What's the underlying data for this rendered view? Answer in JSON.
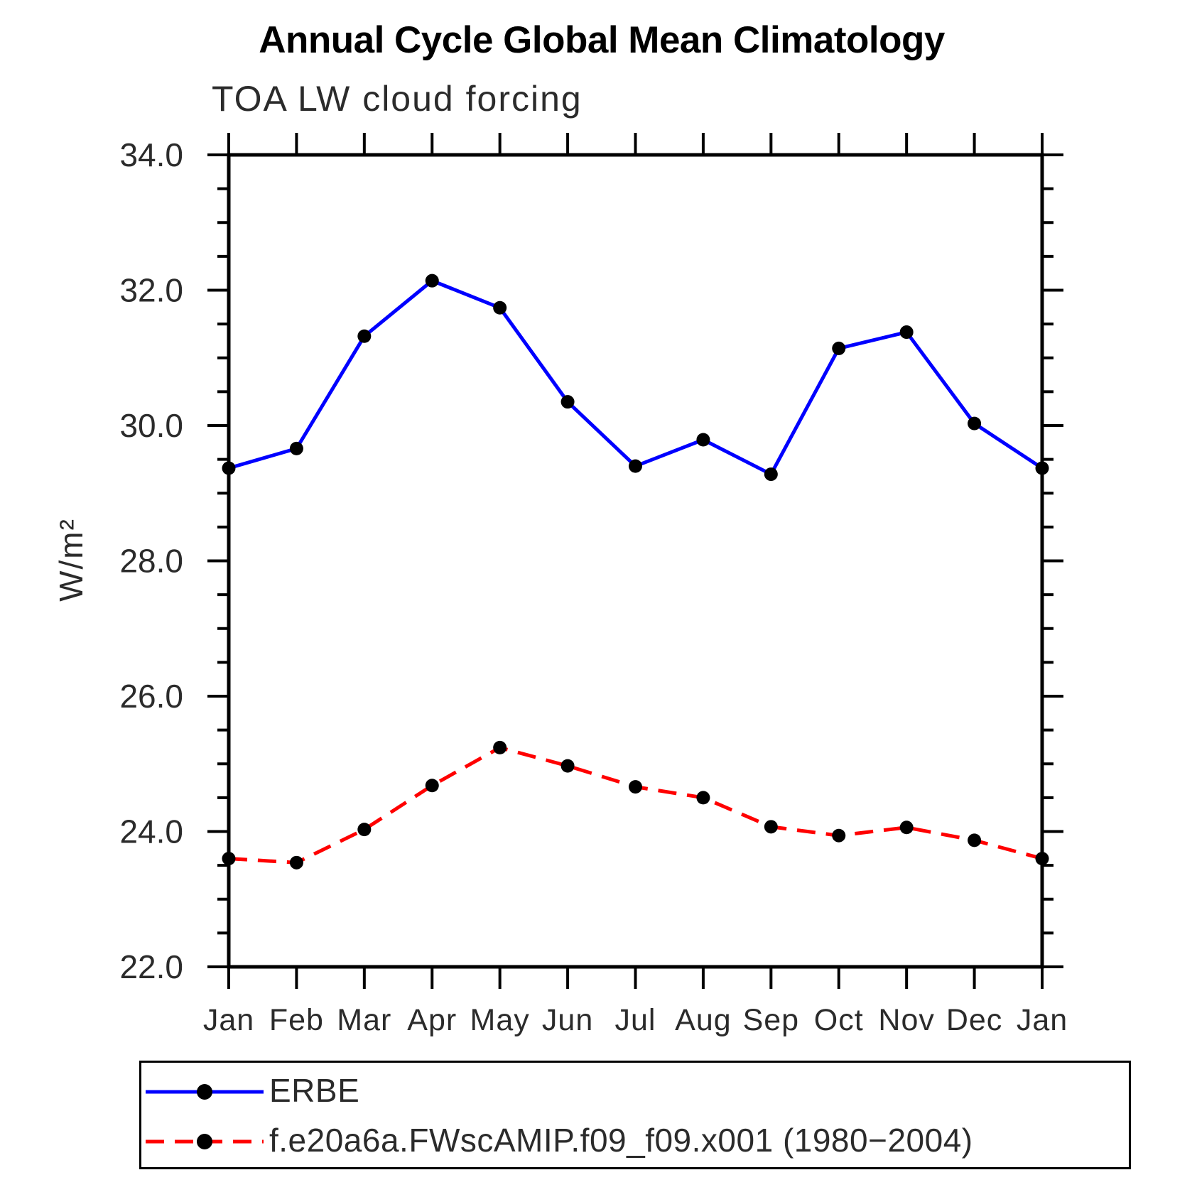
{
  "title": "Annual Cycle Global Mean Climatology",
  "subtitle": "TOA LW cloud forcing",
  "chart_data": {
    "type": "line",
    "title": "Annual Cycle Global Mean Climatology",
    "subtitle": "TOA LW cloud forcing",
    "ylabel": "W/m²",
    "xlabel": "",
    "categories": [
      "Jan",
      "Feb",
      "Mar",
      "Apr",
      "May",
      "Jun",
      "Jul",
      "Aug",
      "Sep",
      "Oct",
      "Nov",
      "Dec",
      "Jan"
    ],
    "ylim": [
      22.0,
      34.0
    ],
    "ytick_major_step": 2.0,
    "ytick_minor_step": 0.5,
    "ytick_labels": [
      "22.0",
      "24.0",
      "26.0",
      "28.0",
      "30.0",
      "32.0",
      "34.0"
    ],
    "grid": false,
    "legend_position": "bottom-left-box",
    "series": [
      {
        "name": "ERBE",
        "color": "#0000ff",
        "line_style": "solid",
        "marker": "filled-circle",
        "marker_color": "#000000",
        "values": [
          29.37,
          29.66,
          31.32,
          32.14,
          31.74,
          30.35,
          29.4,
          29.79,
          29.28,
          31.14,
          31.38,
          30.03,
          29.37
        ]
      },
      {
        "name": "f.e20a6a.FWscAMIP.f09_f09.x001 (1980−2004)",
        "color": "#ff0000",
        "line_style": "dashed",
        "marker": "filled-circle",
        "marker_color": "#000000",
        "values": [
          23.6,
          23.54,
          24.03,
          24.68,
          25.24,
          24.97,
          24.66,
          24.5,
          24.07,
          23.94,
          24.06,
          23.87,
          23.6
        ]
      }
    ]
  }
}
